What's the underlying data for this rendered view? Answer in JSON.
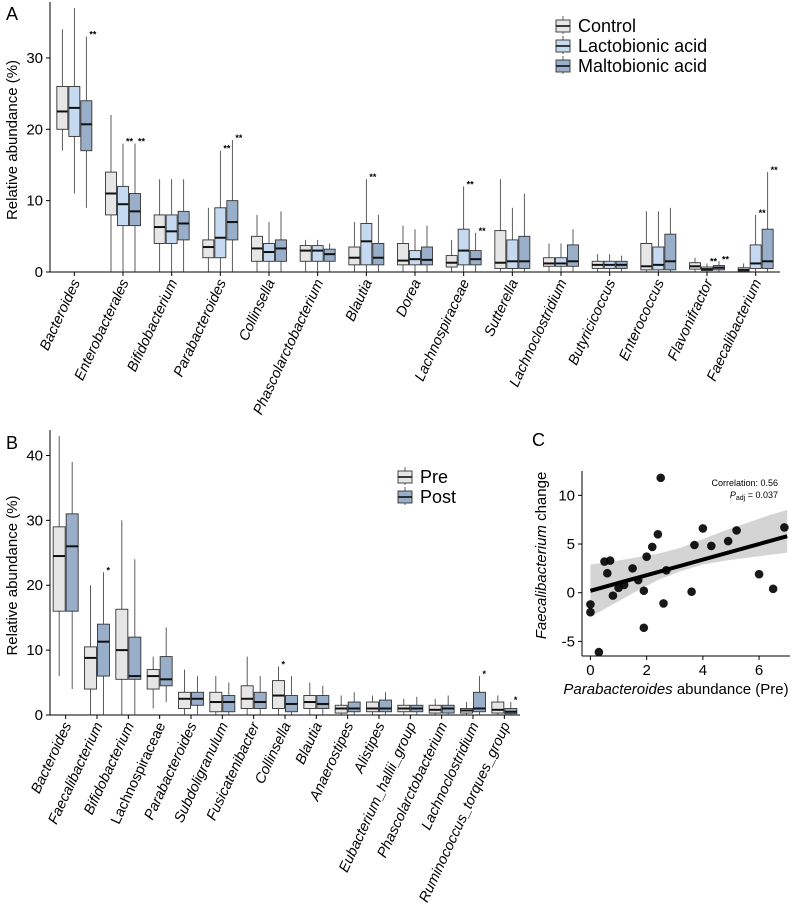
{
  "colors": {
    "control": "#e6e6e6",
    "lactobionic": "#c5daf0",
    "maltobionic": "#99aec9",
    "pre": "#e6e6e6",
    "post": "#99aec9",
    "ci_band": "#cfcfcf",
    "points": "#000000"
  },
  "chart_data": [
    {
      "panel": "A",
      "type": "boxplot",
      "ylabel": "Relative abundance (%)",
      "ylim": [
        0,
        37
      ],
      "yticks": [
        0,
        10,
        20,
        30
      ],
      "legend_position": "top-right",
      "series": [
        {
          "name": "Control",
          "color": "#e6e6e6"
        },
        {
          "name": "Lactobionic acid",
          "color": "#c5daf0"
        },
        {
          "name": "Maltobionic acid",
          "color": "#99aec9"
        }
      ],
      "categories": [
        "Bacteroides",
        "Enterobacterales",
        "Bifidobacterium",
        "Parabacteroides",
        "Collinsella",
        "Phascolarctobacterium",
        "Blautia",
        "Dorea",
        "Lachnospiraceae",
        "Sutterella",
        "Lachnoclostridium",
        "Butyricicoccus",
        "Enterococcus",
        "Flavonifractor",
        "Faecalibacterium"
      ],
      "category_italic": [
        true,
        true,
        true,
        true,
        true,
        true,
        true,
        true,
        true,
        true,
        true,
        true,
        true,
        true,
        true
      ],
      "boxes": [
        [
          {
            "min": 17,
            "q1": 20,
            "median": 22.5,
            "q3": 26,
            "max": 34
          },
          {
            "min": 11,
            "q1": 19,
            "median": 23,
            "q3": 26,
            "max": 37
          },
          {
            "min": 9,
            "q1": 17,
            "median": 20.7,
            "q3": 24,
            "max": 33
          }
        ],
        [
          {
            "min": 0,
            "q1": 8,
            "median": 11,
            "q3": 14,
            "max": 22
          },
          {
            "min": 0,
            "q1": 6.5,
            "median": 9.5,
            "q3": 12,
            "max": 18
          },
          {
            "min": 0,
            "q1": 6.5,
            "median": 8.5,
            "q3": 11,
            "max": 18
          }
        ],
        [
          {
            "min": 0,
            "q1": 4,
            "median": 6.3,
            "q3": 8,
            "max": 13
          },
          {
            "min": 0,
            "q1": 4,
            "median": 5.7,
            "q3": 8,
            "max": 13
          },
          {
            "min": 0,
            "q1": 4.5,
            "median": 6.8,
            "q3": 8.5,
            "max": 13
          }
        ],
        [
          {
            "min": 0,
            "q1": 2,
            "median": 3.5,
            "q3": 4.5,
            "max": 9
          },
          {
            "min": 0,
            "q1": 2,
            "median": 4.8,
            "q3": 9,
            "max": 17
          },
          {
            "min": 0,
            "q1": 4.5,
            "median": 7,
            "q3": 10,
            "max": 18.5
          }
        ],
        [
          {
            "min": 0,
            "q1": 1.5,
            "median": 3.3,
            "q3": 5,
            "max": 8
          },
          {
            "min": 0,
            "q1": 1.5,
            "median": 2.8,
            "q3": 4,
            "max": 7
          },
          {
            "min": 0,
            "q1": 1.5,
            "median": 3.3,
            "q3": 4.5,
            "max": 8.5
          }
        ],
        [
          {
            "min": 0,
            "q1": 1.5,
            "median": 3,
            "q3": 3.7,
            "max": 4.5
          },
          {
            "min": 0,
            "q1": 1.5,
            "median": 3,
            "q3": 3.7,
            "max": 4.5
          },
          {
            "min": 0,
            "q1": 1.5,
            "median": 2.5,
            "q3": 3.2,
            "max": 4
          }
        ],
        [
          {
            "min": 0,
            "q1": 1,
            "median": 2,
            "q3": 3.5,
            "max": 7
          },
          {
            "min": 0,
            "q1": 1,
            "median": 4.3,
            "q3": 6.8,
            "max": 13
          },
          {
            "min": 0,
            "q1": 1,
            "median": 2,
            "q3": 4,
            "max": 8
          }
        ],
        [
          {
            "min": 0,
            "q1": 1,
            "median": 1.6,
            "q3": 4,
            "max": 6.5
          },
          {
            "min": 0,
            "q1": 1,
            "median": 1.8,
            "q3": 3,
            "max": 6
          },
          {
            "min": 0,
            "q1": 1,
            "median": 1.7,
            "q3": 3.5,
            "max": 6.5
          }
        ],
        [
          {
            "min": 0,
            "q1": 0.7,
            "median": 1.3,
            "q3": 2.3,
            "max": 4.5
          },
          {
            "min": 0,
            "q1": 1,
            "median": 3,
            "q3": 6,
            "max": 12
          },
          {
            "min": 0,
            "q1": 1,
            "median": 1.8,
            "q3": 3,
            "max": 5.5
          }
        ],
        [
          {
            "min": 0,
            "q1": 0.5,
            "median": 1.3,
            "q3": 5.8,
            "max": 13
          },
          {
            "min": 0,
            "q1": 0.5,
            "median": 1.5,
            "q3": 4.5,
            "max": 9
          },
          {
            "min": 0,
            "q1": 0.5,
            "median": 1.5,
            "q3": 5,
            "max": 11
          }
        ],
        [
          {
            "min": 0,
            "q1": 0.8,
            "median": 1.2,
            "q3": 2,
            "max": 4
          },
          {
            "min": 0,
            "q1": 0.8,
            "median": 1.2,
            "q3": 2,
            "max": 4
          },
          {
            "min": 0,
            "q1": 0.8,
            "median": 1.5,
            "q3": 3.8,
            "max": 6
          }
        ],
        [
          {
            "min": 0,
            "q1": 0.5,
            "median": 1,
            "q3": 1.5,
            "max": 2.5
          },
          {
            "min": 0,
            "q1": 0.5,
            "median": 1,
            "q3": 1.5,
            "max": 2.5
          },
          {
            "min": 0,
            "q1": 0.5,
            "median": 1,
            "q3": 1.5,
            "max": 2.3
          }
        ],
        [
          {
            "min": 0,
            "q1": 0.3,
            "median": 0.8,
            "q3": 4,
            "max": 8.5
          },
          {
            "min": 0,
            "q1": 0.3,
            "median": 1,
            "q3": 3.5,
            "max": 8.5
          },
          {
            "min": 0,
            "q1": 0.3,
            "median": 1.5,
            "q3": 5.3,
            "max": 9
          }
        ],
        [
          {
            "min": 0,
            "q1": 0.4,
            "median": 0.8,
            "q3": 1.3,
            "max": 2
          },
          {
            "min": 0,
            "q1": 0.2,
            "median": 0.4,
            "q3": 0.7,
            "max": 1.2
          },
          {
            "min": 0,
            "q1": 0.3,
            "median": 0.6,
            "q3": 0.9,
            "max": 1.5
          }
        ],
        [
          {
            "min": 0,
            "q1": 0.1,
            "median": 0.3,
            "q3": 0.6,
            "max": 1.2
          },
          {
            "min": 0,
            "q1": 0.5,
            "median": 1.2,
            "q3": 3.8,
            "max": 8
          },
          {
            "min": 0,
            "q1": 0.5,
            "median": 1.5,
            "q3": 6,
            "max": 14
          }
        ]
      ],
      "significance": [
        {
          "category": 0,
          "series": 2,
          "label": "**"
        },
        {
          "category": 1,
          "series": 1,
          "label": "**"
        },
        {
          "category": 1,
          "series": 2,
          "label": "**"
        },
        {
          "category": 3,
          "series": 1,
          "label": "**"
        },
        {
          "category": 3,
          "series": 2,
          "label": "**"
        },
        {
          "category": 6,
          "series": 1,
          "label": "**"
        },
        {
          "category": 8,
          "series": 1,
          "label": "**"
        },
        {
          "category": 8,
          "series": 2,
          "label": "**"
        },
        {
          "category": 13,
          "series": 1,
          "label": "**"
        },
        {
          "category": 13,
          "series": 2,
          "label": "**"
        },
        {
          "category": 14,
          "series": 1,
          "label": "**"
        },
        {
          "category": 14,
          "series": 2,
          "label": "**"
        }
      ]
    },
    {
      "panel": "B",
      "type": "boxplot",
      "ylabel": "Relative abundance (%)",
      "ylim": [
        0,
        43
      ],
      "yticks": [
        0,
        10,
        20,
        30,
        40
      ],
      "legend_position": "top-right",
      "series": [
        {
          "name": "Pre",
          "color": "#e6e6e6"
        },
        {
          "name": "Post",
          "color": "#99aec9"
        }
      ],
      "categories": [
        "Bacteroides",
        "Faecalibacterium",
        "Bifidobacterium",
        "Lachnospiraceae",
        "Parabacteroides",
        "Subdoligranulum",
        "Fusicatenibacter",
        "Collinsella",
        "Blautia",
        "Anaerostipes",
        "Alistipes",
        "Eubacterium_hallii_group",
        "Phascolarctobacterium",
        "Lachnoclostridium",
        "Ruminococcus_torques_group"
      ],
      "category_italic": [
        true,
        true,
        true,
        false,
        true,
        true,
        true,
        true,
        true,
        true,
        true,
        true,
        true,
        true,
        true
      ],
      "boxes": [
        [
          {
            "min": 6,
            "q1": 16,
            "median": 24.5,
            "q3": 29,
            "max": 43
          },
          {
            "min": 4,
            "q1": 16,
            "median": 26,
            "q3": 31,
            "max": 39
          }
        ],
        [
          {
            "min": 0,
            "q1": 4,
            "median": 8.8,
            "q3": 10.5,
            "max": 20
          },
          {
            "min": 0,
            "q1": 6,
            "median": 11.3,
            "q3": 14,
            "max": 22
          }
        ],
        [
          {
            "min": 0,
            "q1": 5.5,
            "median": 10,
            "q3": 16.3,
            "max": 30
          },
          {
            "min": 0,
            "q1": 5.5,
            "median": 6,
            "q3": 12,
            "max": 24
          }
        ],
        [
          {
            "min": 1,
            "q1": 4,
            "median": 6,
            "q3": 7,
            "max": 9
          },
          {
            "min": 2,
            "q1": 4.5,
            "median": 5.5,
            "q3": 9,
            "max": 13.5
          }
        ],
        [
          {
            "min": 0,
            "q1": 1,
            "median": 2.5,
            "q3": 3.5,
            "max": 7
          },
          {
            "min": 0,
            "q1": 1.5,
            "median": 2.5,
            "q3": 3.5,
            "max": 6
          }
        ],
        [
          {
            "min": 0,
            "q1": 0.5,
            "median": 2,
            "q3": 3.5,
            "max": 6
          },
          {
            "min": 0,
            "q1": 0.5,
            "median": 2,
            "q3": 3,
            "max": 5
          }
        ],
        [
          {
            "min": 0,
            "q1": 1,
            "median": 2.5,
            "q3": 4.5,
            "max": 9
          },
          {
            "min": 0,
            "q1": 1,
            "median": 2,
            "q3": 3.5,
            "max": 6
          }
        ],
        [
          {
            "min": 0,
            "q1": 1,
            "median": 3,
            "q3": 5.3,
            "max": 7.5
          },
          {
            "min": 0,
            "q1": 0.5,
            "median": 1.7,
            "q3": 3,
            "max": 6
          }
        ],
        [
          {
            "min": 0,
            "q1": 1,
            "median": 2,
            "q3": 3,
            "max": 5
          },
          {
            "min": 0,
            "q1": 1,
            "median": 1.7,
            "q3": 3,
            "max": 4.5
          }
        ],
        [
          {
            "min": 0,
            "q1": 0.3,
            "median": 1,
            "q3": 1.5,
            "max": 3
          },
          {
            "min": 0,
            "q1": 0.5,
            "median": 1,
            "q3": 2,
            "max": 3.5
          }
        ],
        [
          {
            "min": 0,
            "q1": 0.5,
            "median": 1,
            "q3": 2,
            "max": 3
          },
          {
            "min": 0,
            "q1": 0.5,
            "median": 1,
            "q3": 2.3,
            "max": 3.5
          }
        ],
        [
          {
            "min": 0,
            "q1": 0.5,
            "median": 1,
            "q3": 1.5,
            "max": 2.5
          },
          {
            "min": 0,
            "q1": 0.5,
            "median": 1,
            "q3": 1.5,
            "max": 2.8
          }
        ],
        [
          {
            "min": 0,
            "q1": 0.3,
            "median": 0.8,
            "q3": 1.5,
            "max": 2.5
          },
          {
            "min": 0,
            "q1": 0.3,
            "median": 1,
            "q3": 1.5,
            "max": 3
          }
        ],
        [
          {
            "min": 0,
            "q1": 0.3,
            "median": 0.7,
            "q3": 1,
            "max": 2
          },
          {
            "min": 0,
            "q1": 0.5,
            "median": 1,
            "q3": 3.5,
            "max": 6
          }
        ],
        [
          {
            "min": 0,
            "q1": 0.3,
            "median": 0.8,
            "q3": 2,
            "max": 3
          },
          {
            "min": 0,
            "q1": 0.2,
            "median": 0.5,
            "q3": 1,
            "max": 2
          }
        ]
      ],
      "significance": [
        {
          "category": 1,
          "series": 1,
          "label": "*"
        },
        {
          "category": 7,
          "series": 0,
          "label": "*"
        },
        {
          "category": 13,
          "series": 1,
          "label": "*"
        },
        {
          "category": 14,
          "series": 1,
          "label": "*"
        }
      ]
    },
    {
      "panel": "C",
      "type": "scatter",
      "xlabel_italic": "Parabacteroides",
      "xlabel_rest": " abundance (Pre)",
      "ylabel_italic": "Faecalibacterium",
      "ylabel_rest": " change",
      "xlim": [
        -0.3,
        7.1
      ],
      "ylim": [
        -6.5,
        12.5
      ],
      "xticks": [
        0,
        2,
        4,
        6
      ],
      "yticks": [
        -5,
        0,
        5,
        10
      ],
      "annotation": {
        "correlation_text": "Correlation: 0.56",
        "p_symbol": "P",
        "p_subscript": "adj",
        "p_value_text": " = 0.037"
      },
      "fit": {
        "x": [
          0,
          7
        ],
        "y": [
          0.2,
          5.8
        ]
      },
      "ci_band": {
        "x": [
          0,
          0.8,
          1.6,
          2.4,
          3.2,
          4.0,
          4.8,
          5.6,
          6.4,
          7.0
        ],
        "lower": [
          -2.5,
          -1.2,
          0.1,
          1.3,
          2.2,
          2.9,
          3.3,
          3.6,
          3.9,
          4.1
        ],
        "upper": [
          2.9,
          3.2,
          3.6,
          4.0,
          4.6,
          5.5,
          6.4,
          7.2,
          8.0,
          8.5
        ]
      },
      "points": [
        {
          "x": 0.0,
          "y": -2.0
        },
        {
          "x": 0.0,
          "y": -1.2
        },
        {
          "x": 0.3,
          "y": -6.1
        },
        {
          "x": 0.5,
          "y": 3.2
        },
        {
          "x": 0.6,
          "y": 2.0
        },
        {
          "x": 0.7,
          "y": 3.3
        },
        {
          "x": 0.8,
          "y": -0.3
        },
        {
          "x": 1.0,
          "y": 0.5
        },
        {
          "x": 1.2,
          "y": 0.8
        },
        {
          "x": 1.5,
          "y": 2.5
        },
        {
          "x": 1.7,
          "y": 1.3
        },
        {
          "x": 1.9,
          "y": -3.6
        },
        {
          "x": 1.9,
          "y": 0.2
        },
        {
          "x": 2.0,
          "y": 3.7
        },
        {
          "x": 2.2,
          "y": 4.7
        },
        {
          "x": 2.4,
          "y": 6.0
        },
        {
          "x": 2.5,
          "y": 11.8
        },
        {
          "x": 2.6,
          "y": -1.1
        },
        {
          "x": 2.7,
          "y": 2.3
        },
        {
          "x": 3.6,
          "y": 0.1
        },
        {
          "x": 3.7,
          "y": 4.9
        },
        {
          "x": 4.0,
          "y": 6.6
        },
        {
          "x": 4.3,
          "y": 4.8
        },
        {
          "x": 4.9,
          "y": 5.3
        },
        {
          "x": 5.2,
          "y": 6.4
        },
        {
          "x": 6.0,
          "y": 1.9
        },
        {
          "x": 6.5,
          "y": 0.4
        },
        {
          "x": 6.9,
          "y": 6.7
        }
      ]
    }
  ]
}
